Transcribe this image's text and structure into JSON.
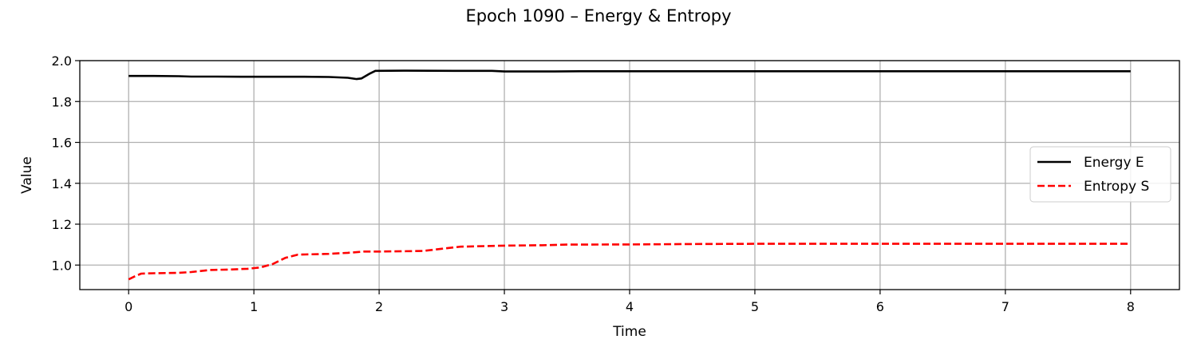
{
  "chart_data": {
    "type": "line",
    "title": "Epoch 1090 – Energy & Entropy",
    "xlabel": "Time",
    "ylabel": "Value",
    "xlim": [
      -0.39,
      8.39
    ],
    "ylim": [
      0.88,
      2.0
    ],
    "xticks": [
      "0",
      "1",
      "2",
      "3",
      "4",
      "5",
      "6",
      "7",
      "8"
    ],
    "yticks": [
      "1.0",
      "1.2",
      "1.4",
      "1.6",
      "1.8",
      "2.0"
    ],
    "grid": true,
    "legend_position": "center-right",
    "series": [
      {
        "name": "Energy E",
        "color": "#000000",
        "style": "solid",
        "points": [
          [
            0.0,
            1.925
          ],
          [
            0.2,
            1.925
          ],
          [
            0.4,
            1.924
          ],
          [
            0.5,
            1.922
          ],
          [
            0.7,
            1.922
          ],
          [
            0.9,
            1.921
          ],
          [
            1.2,
            1.921
          ],
          [
            1.4,
            1.921
          ],
          [
            1.6,
            1.92
          ],
          [
            1.75,
            1.916
          ],
          [
            1.82,
            1.91
          ],
          [
            1.86,
            1.913
          ],
          [
            1.92,
            1.935
          ],
          [
            1.97,
            1.95
          ],
          [
            2.2,
            1.951
          ],
          [
            2.6,
            1.95
          ],
          [
            2.9,
            1.95
          ],
          [
            3.0,
            1.947
          ],
          [
            3.4,
            1.947
          ],
          [
            3.6,
            1.948
          ],
          [
            4.0,
            1.948
          ],
          [
            5.0,
            1.948
          ],
          [
            6.0,
            1.948
          ],
          [
            7.0,
            1.948
          ],
          [
            8.0,
            1.948
          ]
        ]
      },
      {
        "name": "Entropy S",
        "color": "#ff0000",
        "style": "dashed",
        "points": [
          [
            0.0,
            0.93
          ],
          [
            0.05,
            0.945
          ],
          [
            0.1,
            0.958
          ],
          [
            0.2,
            0.96
          ],
          [
            0.4,
            0.962
          ],
          [
            0.5,
            0.966
          ],
          [
            0.65,
            0.976
          ],
          [
            0.8,
            0.978
          ],
          [
            0.95,
            0.982
          ],
          [
            1.05,
            0.988
          ],
          [
            1.15,
            1.005
          ],
          [
            1.25,
            1.035
          ],
          [
            1.35,
            1.051
          ],
          [
            1.6,
            1.055
          ],
          [
            1.75,
            1.06
          ],
          [
            1.88,
            1.066
          ],
          [
            2.0,
            1.066
          ],
          [
            2.35,
            1.069
          ],
          [
            2.5,
            1.08
          ],
          [
            2.65,
            1.09
          ],
          [
            3.0,
            1.095
          ],
          [
            3.3,
            1.097
          ],
          [
            3.5,
            1.1
          ],
          [
            4.0,
            1.101
          ],
          [
            4.5,
            1.103
          ],
          [
            5.0,
            1.104
          ],
          [
            6.0,
            1.104
          ],
          [
            7.0,
            1.104
          ],
          [
            8.0,
            1.104
          ]
        ]
      }
    ]
  }
}
